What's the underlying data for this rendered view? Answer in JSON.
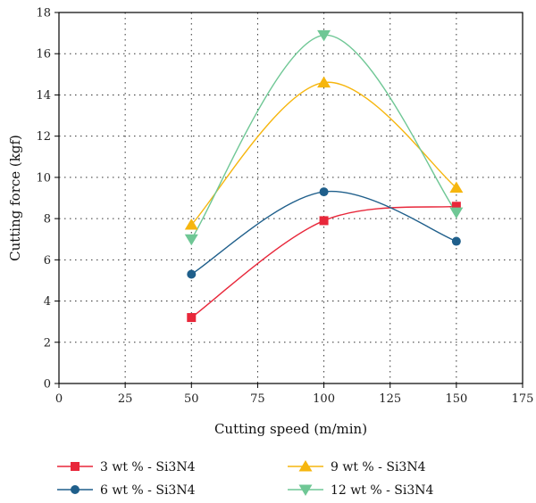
{
  "chart_data": {
    "type": "line",
    "title": "",
    "xlabel": "Cutting speed (m/min)",
    "ylabel": "Cutting force (kgf)",
    "xlim": [
      0,
      175
    ],
    "ylim": [
      0,
      18
    ],
    "xticks": [
      0,
      25,
      50,
      75,
      100,
      125,
      150,
      175
    ],
    "yticks": [
      0,
      2,
      4,
      6,
      8,
      10,
      12,
      14,
      16,
      18
    ],
    "grid": "dotted",
    "legend_placement": "bottom",
    "x": [
      50,
      100,
      150
    ],
    "series": [
      {
        "name": "3 wt % - Si3N4",
        "values": [
          3.2,
          7.9,
          8.6
        ],
        "color": "#e8273a",
        "marker": "square"
      },
      {
        "name": "6 wt % - Si3N4",
        "values": [
          5.3,
          9.3,
          6.9
        ],
        "color": "#1f5f8b",
        "marker": "circle"
      },
      {
        "name": "9 wt % - Si3N4",
        "values": [
          7.7,
          14.6,
          9.5
        ],
        "color": "#f6b60e",
        "marker": "triangle-up"
      },
      {
        "name": "12 wt % - Si3N4",
        "values": [
          7.0,
          16.9,
          8.3
        ],
        "color": "#6fc795",
        "marker": "triangle-down"
      }
    ]
  }
}
